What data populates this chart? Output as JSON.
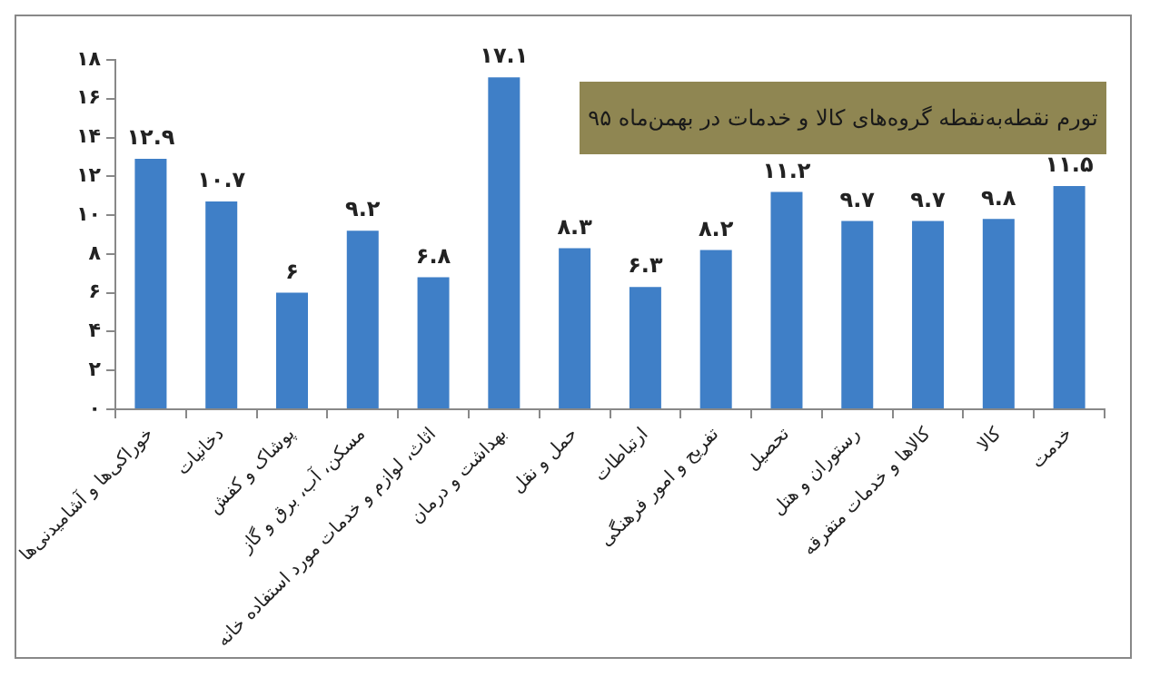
{
  "chart_data": {
    "type": "bar",
    "title": "تورم نقطه‌به‌نقطه گروه‌های کالا و خدمات در بهمن‌ماه ۹۵",
    "categories": [
      "خوراکی‌ها و آشامیدنی‌ها",
      "دخانیات",
      "پوشاک و کفش",
      "مسکن، آب، برق و گاز",
      "اثاث، لوازم و خدمات مورد استفاده خانه",
      "بهداشت و درمان",
      "حمل و نقل",
      "ارتباطات",
      "تفریح و امور فرهنگی",
      "تحصیل",
      "رستوران و هتل",
      "کالاها و خدمات متفرقه",
      "کالا",
      "خدمت"
    ],
    "values": [
      12.9,
      10.7,
      6,
      9.2,
      6.8,
      17.1,
      8.3,
      6.3,
      8.2,
      11.2,
      9.7,
      9.7,
      9.8,
      11.5
    ],
    "value_labels": [
      "۱۲.۹",
      "۱۰.۷",
      "۶",
      "۹.۲",
      "۶.۸",
      "۱۷.۱",
      "۸.۳",
      "۶.۳",
      "۸.۲",
      "۱۱.۲",
      "۹.۷",
      "۹.۷",
      "۹.۸",
      "۱۱.۵"
    ],
    "color": "#3f7fc7",
    "ylim": [
      0,
      18
    ],
    "yticks": [
      {
        "value": 0,
        "label": "۰"
      },
      {
        "value": 2,
        "label": "۲"
      },
      {
        "value": 4,
        "label": "۴"
      },
      {
        "value": 6,
        "label": "۶"
      },
      {
        "value": 8,
        "label": "۸"
      },
      {
        "value": 10,
        "label": "۱۰"
      },
      {
        "value": 12,
        "label": "۱۲"
      },
      {
        "value": 14,
        "label": "۱۴"
      },
      {
        "value": 16,
        "label": "۱۶"
      },
      {
        "value": 18,
        "label": "۱۸"
      }
    ],
    "grid": false,
    "legend": false
  }
}
